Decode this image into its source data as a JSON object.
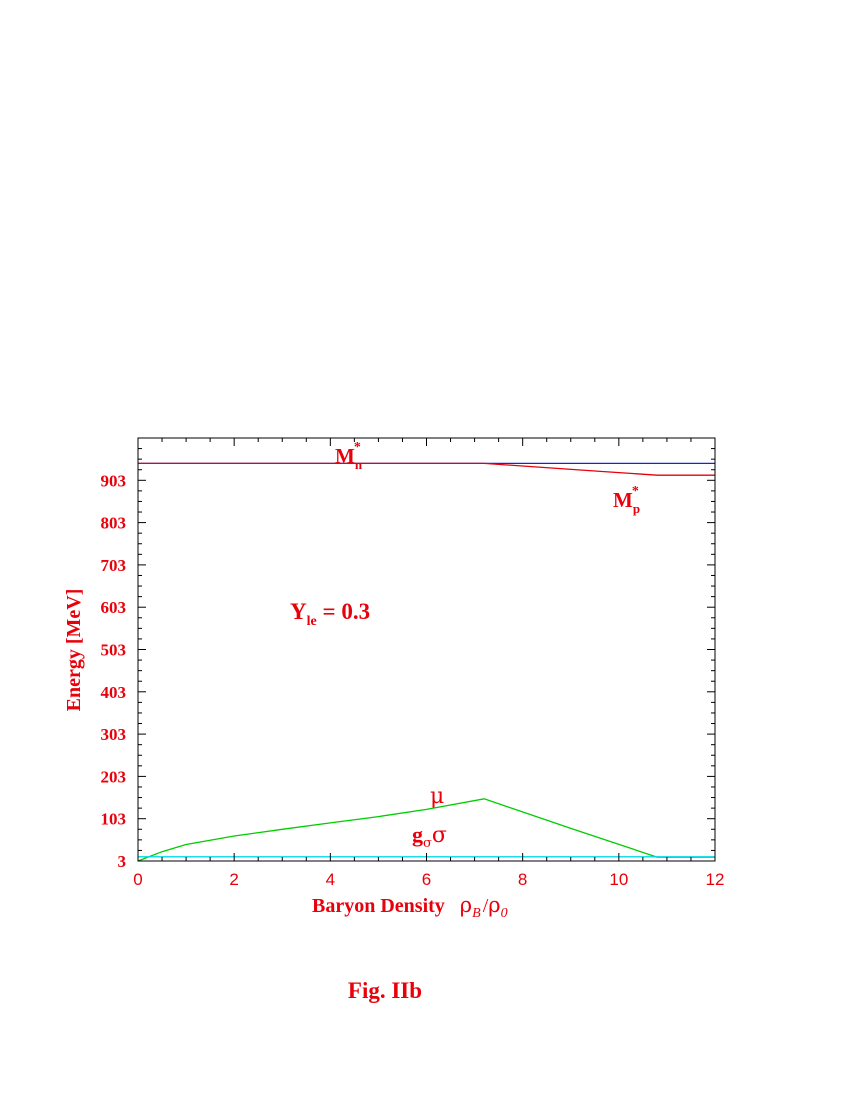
{
  "chart_data": {
    "type": "line",
    "xlabel": "Baryon Density",
    "xlabel_symbol": {
      "rho": "ρ",
      "sub_b": "B",
      "slash": "/",
      "sub_0": "0"
    },
    "ylabel": "Energy [MeV]",
    "xlim": [
      0,
      12
    ],
    "ylim": [
      3,
      1003
    ],
    "x_ticks": [
      0,
      2,
      4,
      6,
      8,
      10,
      12
    ],
    "y_ticks": [
      3,
      103,
      203,
      303,
      403,
      503,
      603,
      703,
      803,
      903
    ],
    "annotation": {
      "Y": "Y",
      "sub": "le",
      "rest": " = 0.3"
    },
    "series": [
      {
        "label": "M_n*",
        "color": "#1f1fd6",
        "x": [
          0,
          7.2,
          12
        ],
        "y": [
          943,
          943,
          943
        ]
      },
      {
        "label": "M_p*",
        "color": "#e8000b",
        "x": [
          0,
          7.2,
          9.5,
          10.8,
          12
        ],
        "y": [
          943,
          943,
          925,
          915,
          915
        ]
      },
      {
        "label": "μ",
        "color": "#00cc00",
        "x": [
          0,
          0.5,
          1,
          2,
          3,
          4,
          5,
          6,
          7.2,
          9,
          10.8,
          12
        ],
        "y": [
          3,
          25,
          42,
          62,
          78,
          93,
          108,
          125,
          150,
          80,
          12,
          12
        ]
      },
      {
        "label": "gσσ",
        "color": "#00d8e8",
        "x": [
          0,
          12
        ],
        "y": [
          13,
          13
        ]
      }
    ],
    "labels": {
      "mn": {
        "M": "M",
        "star": "*",
        "sub": "n"
      },
      "mp": {
        "M": "M",
        "star": "*",
        "sub": "p"
      },
      "mu": "μ",
      "gsigma": {
        "g": "g",
        "sub": "σ",
        "sigma": "σ"
      }
    }
  },
  "caption": "Fig. IIb"
}
